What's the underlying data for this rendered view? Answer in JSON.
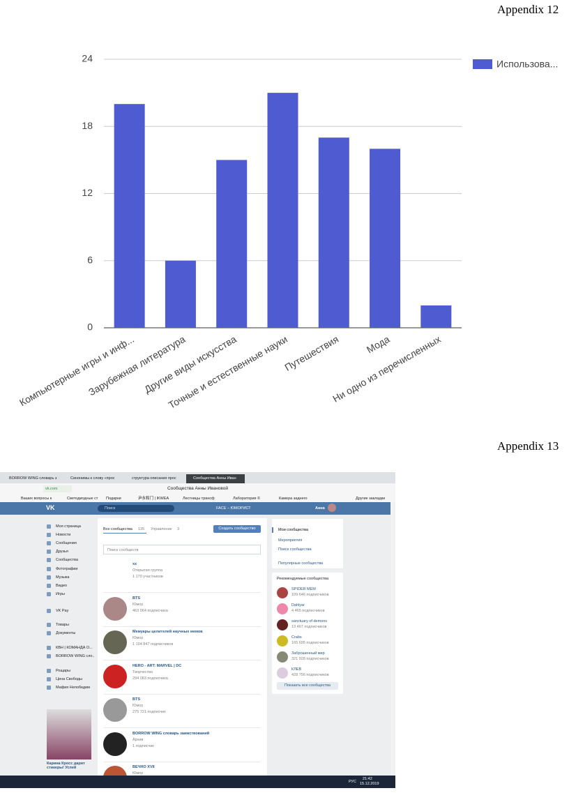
{
  "header": {
    "appendix_12": "Appendix 12",
    "appendix_13": "Appendix 13"
  },
  "chart_data": {
    "type": "bar",
    "categories": [
      "Компьютерные игры и инф...",
      "Зарубежная литература",
      "Другие виды искусства",
      "Точные и естественные науки",
      "Путешествия",
      "Мода",
      "Ни одно из перечисленных"
    ],
    "series": [
      {
        "name": "Использова...",
        "color": "#4e5bd1",
        "values": [
          20,
          6,
          15,
          21,
          17,
          16,
          2
        ]
      }
    ],
    "ylim": [
      0,
      24
    ],
    "yticks": [
      0,
      6,
      12,
      18,
      24
    ],
    "grid": true,
    "legend": "right"
  },
  "screenshot": {
    "tabs": [
      "BORROW WING словарь з",
      "Синонимы к слову «прос",
      "структура описания прос",
      "Сообщества Анны Иван"
    ],
    "url": "vk.com",
    "page_title": "Сообщества Анны Ивановой",
    "bookmarks": [
      "Ваших вопросы к",
      "Светодиодные ст",
      "Подарки",
      "尹永和门 | IKWEA",
      "Лестницы трансф",
      "Лаборатория ©",
      "Камера заднего",
      "Другие закладки"
    ],
    "search": "Поиск",
    "player": "FACE – ЮМОРИСТ",
    "user": "Анна",
    "menu": [
      "Моя страница",
      "Новости",
      "Сообщения",
      "Друзья",
      "Сообщества",
      "Фотографии",
      "Музыка",
      "Видео",
      "Игры",
      "VK Pay",
      "Товары",
      "Документы",
      "КВН | КОМАНДА О...",
      "BORROW WING сло...",
      "Рощары",
      "Цена Свободы",
      "Мафия Непобедим"
    ],
    "ad_caption": "Карина Кросс дарит стикеры! Успей",
    "main_tabs": {
      "all": "Все сообщества",
      "all_count": "135",
      "manage": "Управление",
      "manage_count": "3",
      "create": "Создать сообщество"
    },
    "search_placeholder": "Поиск сообществ",
    "communities": [
      {
        "name": "xx",
        "type": "Открытая группа",
        "members": "1 170 участников"
      },
      {
        "name": "BTS",
        "type": "Юмор",
        "members": "463 064 подписчика"
      },
      {
        "name": "Мемуары целителей научных мемов",
        "type": "Юмор",
        "members": "1 194 847 подписчиков"
      },
      {
        "name": "HERO - ART: MARVEL | DC",
        "type": "Творчество",
        "members": "294 083 подписчика"
      },
      {
        "name": "BTS",
        "type": "Юмор",
        "members": "275 721 подписчик"
      },
      {
        "name": "BORROW WING словарь заимствований",
        "type": "Архив",
        "members": "1 подписчик"
      },
      {
        "name": "ВЕЧНО XVII",
        "type": "Юмор"
      }
    ],
    "right_menu": [
      "Мои сообщества",
      "Мероприятия",
      "Поиск сообщества",
      "Популярные сообщества"
    ],
    "recommended_title": "Рекомендуемые сообщества",
    "recommended": [
      {
        "name": "SPIDER MEM",
        "members": "109 646 подписчиков"
      },
      {
        "name": "Dahlyar",
        "members": "4 465 подписчиков"
      },
      {
        "name": "sanctuary of demons",
        "members": "13 467 подписчиков"
      },
      {
        "name": "Crabs",
        "members": "165 695 подписчиков"
      },
      {
        "name": "Заброшенный мир",
        "members": "321 928 подписчиков"
      },
      {
        "name": "КЛЕВ",
        "members": "428 756 подписчиков"
      }
    ],
    "show_all": "Показать все сообщества",
    "taskbar": {
      "lang": "РУС",
      "time": "21:42",
      "date": "15.12.2019"
    }
  }
}
